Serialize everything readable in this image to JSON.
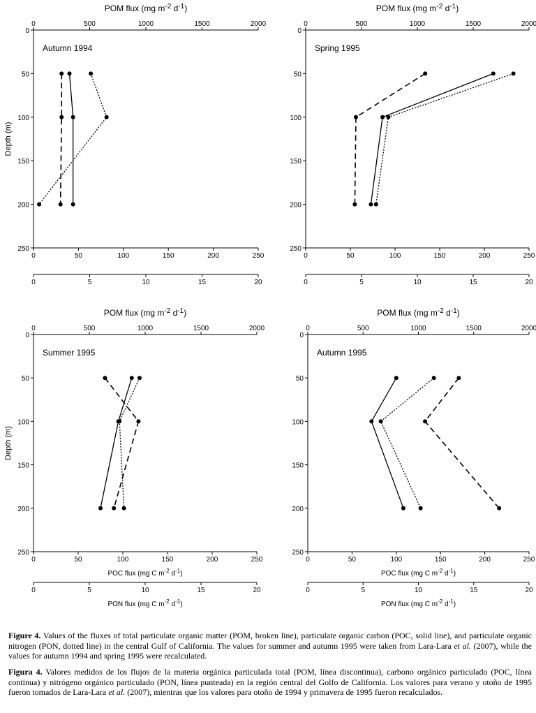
{
  "chart_data": [
    {
      "type": "line",
      "panel_label": "Autumn 1994",
      "top_axis_label": "POM flux (mg m",
      "top_axis_label_sup1": "-2",
      "top_axis_label_mid": " d",
      "top_axis_label_sup2": "-1",
      "top_axis_label_end": ")",
      "ylabel": "Depth (m)",
      "xlabel": "",
      "x2label": "",
      "pom_ticks": [
        "0",
        "500",
        "1000",
        "1500",
        "2000"
      ],
      "poc_ticks": [
        "0",
        "50",
        "100",
        "150",
        "200",
        "250"
      ],
      "pon_ticks": [
        "0",
        "5",
        "10",
        "15",
        "20"
      ],
      "depth_ticks": [
        "0",
        "50",
        "100",
        "150",
        "200",
        "250"
      ],
      "pom_range": [
        0,
        2000
      ],
      "poc_range": [
        0,
        250
      ],
      "pon_range": [
        0,
        20
      ],
      "depth_range": [
        0,
        250
      ],
      "series": [
        {
          "name": "POM",
          "style": "broken",
          "axis": "POM",
          "x": [
            250,
            250,
            240
          ],
          "depth": [
            50,
            100,
            200
          ]
        },
        {
          "name": "POC",
          "style": "solid",
          "axis": "POC",
          "x": [
            40,
            44,
            44
          ],
          "depth": [
            50,
            100,
            200
          ]
        },
        {
          "name": "PON",
          "style": "dotted",
          "axis": "PON",
          "x": [
            5.1,
            6.5,
            0.5
          ],
          "depth": [
            50,
            100,
            200
          ]
        }
      ]
    },
    {
      "type": "line",
      "panel_label": "Spring 1995",
      "top_axis_label": "POM flux (mg m",
      "top_axis_label_sup1": "-2",
      "top_axis_label_mid": " d",
      "top_axis_label_sup2": "-1",
      "top_axis_label_end": ")",
      "ylabel": "",
      "xlabel": "",
      "x2label": "",
      "pom_ticks": [
        "0",
        "500",
        "1000",
        "1500",
        "2000"
      ],
      "poc_ticks": [
        "0",
        "50",
        "100",
        "150",
        "200",
        "250"
      ],
      "pon_ticks": [
        "0",
        "5",
        "10",
        "15",
        "20"
      ],
      "depth_ticks": [
        "0",
        "50",
        "100",
        "150",
        "200",
        "250"
      ],
      "pom_range": [
        0,
        2000
      ],
      "poc_range": [
        0,
        250
      ],
      "pon_range": [
        0,
        20
      ],
      "depth_range": [
        0,
        250
      ],
      "series": [
        {
          "name": "POM",
          "style": "broken",
          "axis": "POM",
          "x": [
            1070,
            450,
            440
          ],
          "depth": [
            50,
            100,
            200
          ]
        },
        {
          "name": "POC",
          "style": "solid",
          "axis": "POC",
          "x": [
            210,
            86,
            73
          ],
          "depth": [
            50,
            100,
            200
          ]
        },
        {
          "name": "PON",
          "style": "dotted",
          "axis": "PON",
          "x": [
            18.6,
            7.4,
            6.3
          ],
          "depth": [
            50,
            100,
            200
          ]
        }
      ]
    },
    {
      "type": "line",
      "panel_label": "Summer 1995",
      "top_axis_label": "POM flux (mg m",
      "top_axis_label_sup1": "-2",
      "top_axis_label_mid": " d",
      "top_axis_label_sup2": "-1",
      "top_axis_label_end": ")",
      "ylabel": "Depth (m)",
      "xlabel": "POC flux (mg C m",
      "xlabel_sup": "-2",
      "xlabel_mid": " d",
      "xlabel_sup2": "-1",
      "xlabel_end": ")",
      "x2label": "PON flux (mg C m",
      "x2label_sup": "-2",
      "x2label_mid": " d",
      "x2label_sup2": "-1",
      "x2label_end": ")",
      "pom_ticks": [
        "0",
        "500",
        "1000",
        "1500",
        "2000"
      ],
      "poc_ticks": [
        "0",
        "50",
        "100",
        "150",
        "200",
        "250"
      ],
      "pon_ticks": [
        "0",
        "5",
        "10",
        "15",
        "20"
      ],
      "depth_ticks": [
        "0",
        "50",
        "100",
        "150",
        "200",
        "250"
      ],
      "pom_range": [
        0,
        2000
      ],
      "poc_range": [
        0,
        250
      ],
      "pon_range": [
        0,
        20
      ],
      "depth_range": [
        0,
        250
      ],
      "series": [
        {
          "name": "POM",
          "style": "broken",
          "axis": "POM",
          "x": [
            640,
            940,
            720
          ],
          "depth": [
            50,
            100,
            200
          ]
        },
        {
          "name": "POC",
          "style": "solid",
          "axis": "POC",
          "x": [
            110,
            95,
            75
          ],
          "depth": [
            50,
            100,
            200
          ]
        },
        {
          "name": "PON",
          "style": "dotted",
          "axis": "PON",
          "x": [
            9.5,
            7.7,
            8.1
          ],
          "depth": [
            50,
            100,
            200
          ]
        }
      ]
    },
    {
      "type": "line",
      "panel_label": "Autumn 1995",
      "top_axis_label": "POM flux (mg m",
      "top_axis_label_sup1": "-2",
      "top_axis_label_mid": " d",
      "top_axis_label_sup2": "-1",
      "top_axis_label_end": ")",
      "ylabel": "",
      "xlabel": "POC flux (mg C m",
      "xlabel_sup": "-2",
      "xlabel_mid": " d",
      "xlabel_sup2": "-1",
      "xlabel_end": ")",
      "x2label": "PON flux (mg C m",
      "x2label_sup": "-2",
      "x2label_mid": " d",
      "x2label_sup2": "-1",
      "x2label_end": ")",
      "pom_ticks": [
        "0",
        "500",
        "1000",
        "1500",
        "2000"
      ],
      "poc_ticks": [
        "0",
        "50",
        "100",
        "150",
        "200",
        "250"
      ],
      "pon_ticks": [
        "0",
        "5",
        "10",
        "15",
        "20"
      ],
      "depth_ticks": [
        "0",
        "50",
        "100",
        "150",
        "200",
        "250"
      ],
      "pom_range": [
        0,
        2000
      ],
      "poc_range": [
        0,
        250
      ],
      "pon_range": [
        0,
        20
      ],
      "depth_range": [
        0,
        250
      ],
      "series": [
        {
          "name": "POM",
          "style": "broken",
          "axis": "POM",
          "x": [
            1365,
            1060,
            1730
          ],
          "depth": [
            50,
            100,
            200
          ]
        },
        {
          "name": "POC",
          "style": "solid",
          "axis": "POC",
          "x": [
            100,
            72,
            108
          ],
          "depth": [
            50,
            100,
            200
          ]
        },
        {
          "name": "PON",
          "style": "dotted",
          "axis": "PON",
          "x": [
            11.4,
            6.6,
            10.2
          ],
          "depth": [
            50,
            100,
            200
          ]
        }
      ]
    }
  ],
  "caption_en": {
    "label": "Figure 4.",
    "text_a": " Values of the fluxes of total particulate organic matter (POM, broken line), particulate organic carbon (POC, solid line), and particulate organic nitrogen (PON, dotted line) in the central Gulf of California. The values for summer and autumn 1995 were taken from Lara-Lara ",
    "etal": "et al.",
    "text_b": " (2007), while the values for autumn 1994 and spring 1995 were recalculated."
  },
  "caption_es": {
    "label": "Figura 4.",
    "text_a": " Valores medidos de los flujos de la materia orgánica particulada total (POM, línea discontinua), carbono orgánico particulado (POC, línea continua) y nitrógeno orgánico particulado (PON, línea punteada) en la región central del Golfo de California. Los valores para verano y otoño de 1995 fueron tomados de Lara-Lara ",
    "etal": "et al.",
    "text_b": " (2007), mientras que los valores para otoño de 1994 y primavera de 1995 fueron recalculados."
  }
}
